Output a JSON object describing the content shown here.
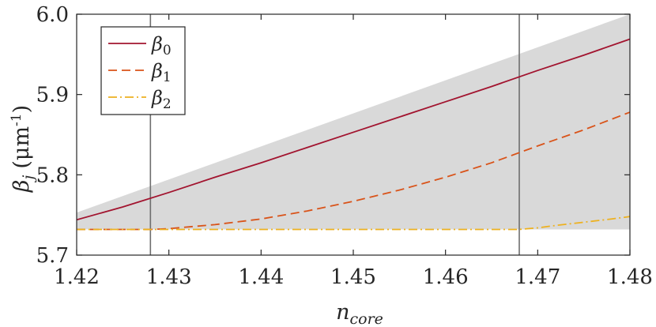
{
  "chart_data": {
    "type": "line",
    "xlabel": "n",
    "xlabel_sub": "core",
    "ylabel": "β",
    "ylabel_sub": "j",
    "ylabel_unit": "(μm",
    "ylabel_unit_sup": "-1",
    "ylabel_unit_close": ")",
    "xlim": [
      1.42,
      1.48
    ],
    "ylim": [
      5.7,
      6.0
    ],
    "x_ticks": [
      "1.42",
      "1.43",
      "1.44",
      "1.45",
      "1.46",
      "1.47",
      "1.48"
    ],
    "y_ticks": [
      "5.7",
      "5.8",
      "5.9",
      "6.0"
    ],
    "grid": false,
    "legend_position": "top-left",
    "shaded_region": {
      "color": "#d9d9d9",
      "x": [
        1.42,
        1.48
      ],
      "lower": [
        5.732,
        5.732
      ],
      "upper": [
        5.753,
        6.0
      ]
    },
    "vertical_lines": [
      {
        "x": 1.428,
        "color": "#6e6e6e"
      },
      {
        "x": 1.468,
        "color": "#6e6e6e"
      }
    ],
    "series": [
      {
        "name": "β",
        "subscript": "0",
        "color": "#a2142f",
        "dash": "solid",
        "x": [
          1.42,
          1.425,
          1.43,
          1.435,
          1.44,
          1.445,
          1.45,
          1.455,
          1.46,
          1.465,
          1.47,
          1.475,
          1.48
        ],
        "y": [
          5.744,
          5.76,
          5.778,
          5.797,
          5.815,
          5.834,
          5.853,
          5.872,
          5.891,
          5.91,
          5.93,
          5.949,
          5.969
        ]
      },
      {
        "name": "β",
        "subscript": "1",
        "color": "#d95319",
        "dash": "dashed",
        "x": [
          1.42,
          1.425,
          1.428,
          1.43,
          1.435,
          1.44,
          1.445,
          1.45,
          1.455,
          1.46,
          1.465,
          1.47,
          1.475,
          1.48
        ],
        "y": [
          5.732,
          5.732,
          5.732,
          5.733,
          5.738,
          5.745,
          5.755,
          5.767,
          5.781,
          5.797,
          5.815,
          5.836,
          5.856,
          5.878
        ]
      },
      {
        "name": "β",
        "subscript": "2",
        "color": "#edb120",
        "dash": "dashdot",
        "x": [
          1.42,
          1.43,
          1.44,
          1.45,
          1.46,
          1.465,
          1.468,
          1.47,
          1.472,
          1.475,
          1.478,
          1.48
        ],
        "y": [
          5.732,
          5.732,
          5.732,
          5.732,
          5.732,
          5.732,
          5.732,
          5.734,
          5.737,
          5.741,
          5.745,
          5.748
        ]
      }
    ]
  }
}
